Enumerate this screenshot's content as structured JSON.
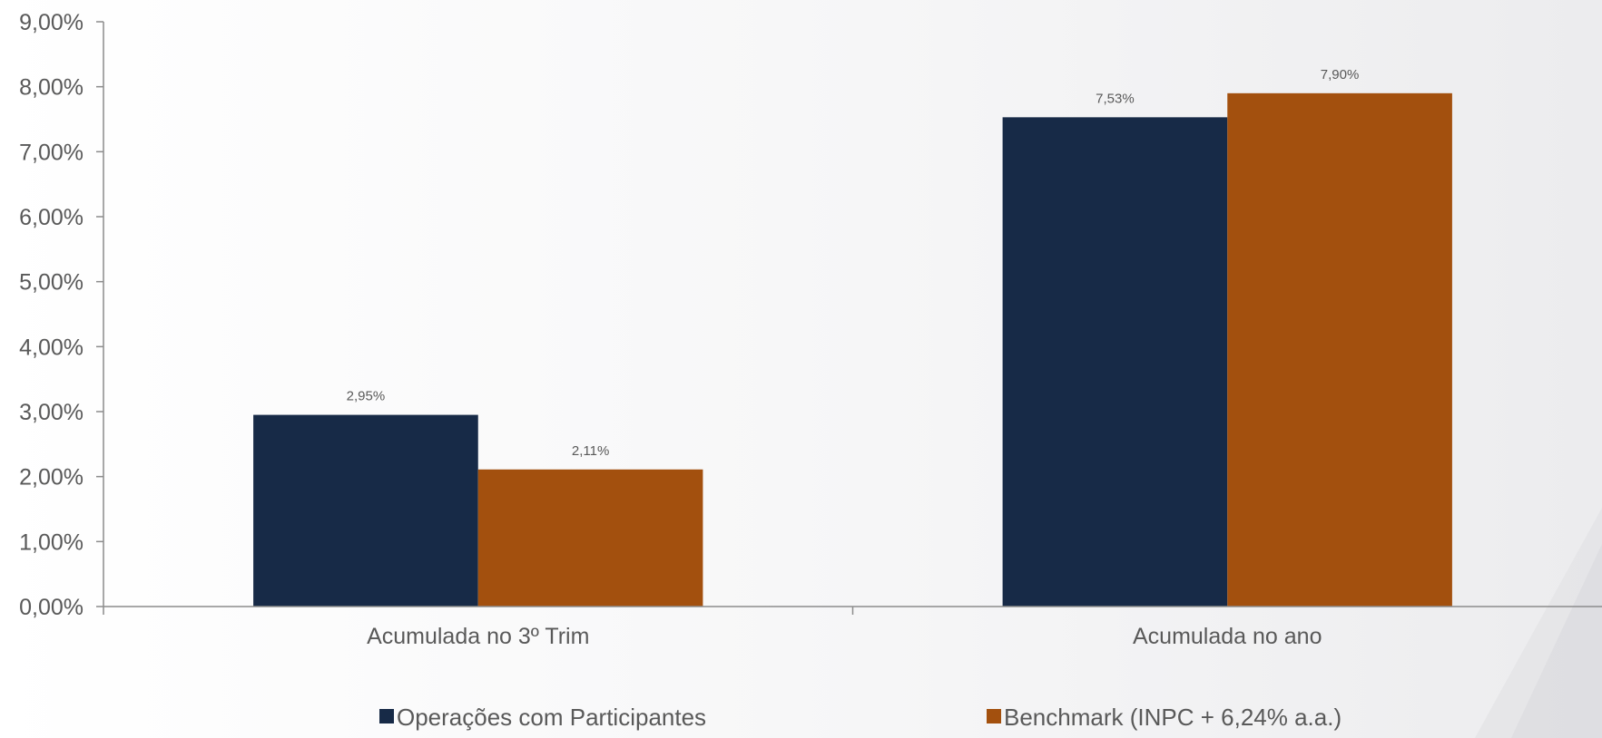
{
  "chart_data": {
    "type": "bar",
    "categories": [
      "Acumulada no 3º Trim",
      "Acumulada no ano"
    ],
    "series": [
      {
        "name": "Operações com Participantes",
        "values": [
          2.95,
          7.53
        ],
        "labels": [
          "2,95%",
          "7,53%"
        ],
        "color": "#172a47"
      },
      {
        "name": "Benchmark (INPC + 6,24% a.a.)",
        "values": [
          2.11,
          7.9
        ],
        "labels": [
          "2,11%",
          "7,90%"
        ],
        "color": "#a3500e"
      }
    ],
    "ylim": [
      0,
      9
    ],
    "y_ticks": [
      {
        "value": 0,
        "label": "0,00%"
      },
      {
        "value": 1,
        "label": "1,00%"
      },
      {
        "value": 2,
        "label": "2,00%"
      },
      {
        "value": 3,
        "label": "3,00%"
      },
      {
        "value": 4,
        "label": "4,00%"
      },
      {
        "value": 5,
        "label": "5,00%"
      },
      {
        "value": 6,
        "label": "6,00%"
      },
      {
        "value": 7,
        "label": "7,00%"
      },
      {
        "value": 8,
        "label": "8,00%"
      },
      {
        "value": 9,
        "label": "9,00%"
      }
    ],
    "grid": false,
    "legend_position": "bottom",
    "axis_color": "#8c8c8c"
  }
}
